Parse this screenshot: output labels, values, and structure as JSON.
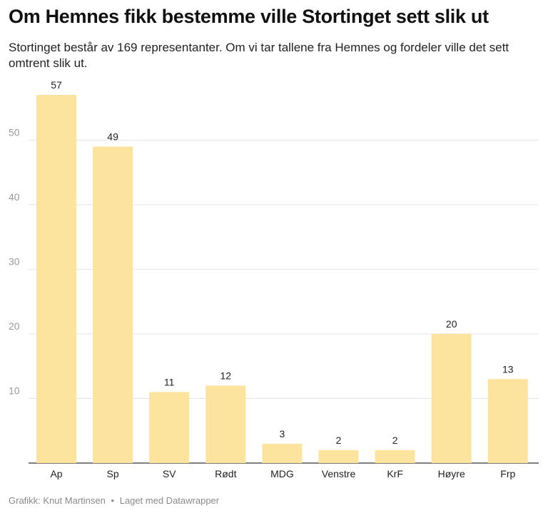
{
  "header": {
    "title": "Om Hemnes fikk bestemme ville Stortinget sett slik ut",
    "subtitle": "Stortinget består av 169 representanter. Om vi tar tallene fra Hemnes og fordeler ville det sett omtrent slik ut."
  },
  "footer": {
    "credit": "Grafikk: Knut Martinsen",
    "separator": "•",
    "tool": "Laget med Datawrapper"
  },
  "chart_data": {
    "type": "bar",
    "title": "",
    "xlabel": "",
    "ylabel": "",
    "categories": [
      "Ap",
      "Sp",
      "SV",
      "Rødt",
      "MDG",
      "Venstre",
      "KrF",
      "Høyre",
      "Frp"
    ],
    "values": [
      57,
      49,
      11,
      12,
      3,
      2,
      2,
      20,
      13
    ],
    "ylim": [
      0,
      57
    ],
    "yticks": [
      10,
      20,
      30,
      40,
      50
    ],
    "grid": true,
    "legend": "none",
    "bar_color": "#fde49e",
    "grid_color": "#e4e4e4",
    "baseline_color": "#333333",
    "tick_label_color": "#9a9a9a",
    "value_label_color": "#222222"
  }
}
